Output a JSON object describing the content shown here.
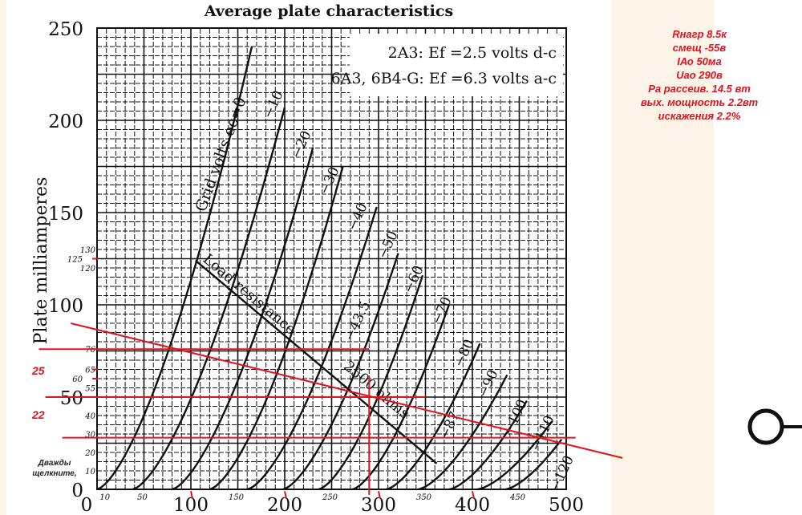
{
  "notes": [
    "Rнагр  8.5к",
    "смещ -55в",
    "IАо 50ма",
    "Uао 290в",
    "Ра рассеив. 14.5 вт",
    "вых. мощность 2.2вт",
    "искажения 2.2%"
  ],
  "left_notes": {
    "red_25": "25",
    "red_22": "22",
    "hint_line1": "Дважды",
    "hint_line2": "щелкните,"
  },
  "colors": {
    "ink": "#111111",
    "red": "#e0141e",
    "beige": "#fdf3e6"
  },
  "chart_data": {
    "type": "line",
    "title": "Average plate characteristics",
    "legend": [
      "2A3: Ef =2.5 volts d-c",
      "6A3, 6B4-G: Ef =6.3 volts a-c"
    ],
    "legend_placement": "top-right",
    "xlabel": "",
    "ylabel": "Plate milliamperes",
    "xlim": [
      0,
      500
    ],
    "ylim": [
      0,
      250
    ],
    "x_ticks": [
      "0",
      "100",
      "200",
      "300",
      "400",
      "500"
    ],
    "y_ticks": [
      "0",
      "50",
      "100",
      "150",
      "200",
      "250"
    ],
    "x_minor_labels": [
      {
        "v": 10,
        "t": "10"
      },
      {
        "v": 50,
        "t": "50"
      },
      {
        "v": 150,
        "t": "150"
      },
      {
        "v": 250,
        "t": "250"
      },
      {
        "v": 350,
        "t": "350"
      },
      {
        "v": 450,
        "t": "450"
      }
    ],
    "y_minor_labels": [
      {
        "v": 130,
        "t": "130"
      },
      {
        "v": 125,
        "t": "125"
      },
      {
        "v": 120,
        "t": "120"
      },
      {
        "v": 76,
        "t": "76"
      },
      {
        "v": 65,
        "t": "65"
      },
      {
        "v": 60,
        "t": "60"
      },
      {
        "v": 55,
        "t": "55"
      },
      {
        "v": 40,
        "t": "40"
      },
      {
        "v": 30,
        "t": "30"
      },
      {
        "v": 20,
        "t": "20"
      },
      {
        "v": 10,
        "t": "10"
      }
    ],
    "grid": true,
    "grid_curve_label_prefix": "Grid volts",
    "series": [
      {
        "name": "0",
        "label": "ec=0",
        "cutoff": 0,
        "end": [
          165,
          240
        ]
      },
      {
        "name": "-10",
        "label": "−10",
        "cutoff": 38,
        "end": [
          200,
          207
        ]
      },
      {
        "name": "-20",
        "label": "−20",
        "cutoff": 80,
        "end": [
          230,
          185
        ]
      },
      {
        "name": "-30",
        "label": "−30",
        "cutoff": 120,
        "end": [
          262,
          175
        ]
      },
      {
        "name": "-40",
        "label": "−40",
        "cutoff": 160,
        "end": [
          298,
          153
        ]
      },
      {
        "name": "-50",
        "label": "−50",
        "cutoff": 198,
        "end": [
          321,
          128
        ]
      },
      {
        "name": "-60",
        "label": "−60",
        "cutoff": 236,
        "end": [
          347,
          116
        ]
      },
      {
        "name": "-70",
        "label": "−70",
        "cutoff": 272,
        "end": [
          375,
          100
        ]
      },
      {
        "name": "-80",
        "label": "−80",
        "cutoff": 308,
        "end": [
          408,
          79
        ]
      },
      {
        "name": "-90",
        "label": "−90",
        "cutoff": 342,
        "end": [
          437,
          62
        ]
      },
      {
        "name": "-100",
        "label": "−100",
        "cutoff": 375,
        "end": [
          458,
          48
        ]
      },
      {
        "name": "-110",
        "label": "−110",
        "cutoff": 405,
        "end": [
          485,
          37
        ]
      },
      {
        "name": "-120",
        "label": "−120",
        "cutoff": 435,
        "end": [
          495,
          27
        ]
      }
    ],
    "extra_labels": [
      {
        "t": "−43.5",
        "v": 275,
        "i": 80
      },
      {
        "t": "−87",
        "v": 378,
        "i": 33
      }
    ],
    "load_line": {
      "label": "Load resistance",
      "value_label": "2500 ohms",
      "from": [
        105,
        124
      ],
      "to": [
        362,
        14
      ]
    },
    "red_lines": {
      "load_line": {
        "from": [
          -28,
          90
        ],
        "to": [
          560,
          17
        ]
      },
      "horizontal_mA": [
        {
          "i": 76,
          "v0": -62,
          "v1": 290
        },
        {
          "i": 50,
          "v0": -55,
          "v1": 350
        },
        {
          "i": 28,
          "v0": -37,
          "v1": 510
        }
      ],
      "vertical_V": [
        {
          "v": 290,
          "i0": -3,
          "i1": 61
        }
      ],
      "x_ticks": [
        100,
        200,
        300,
        400
      ],
      "y_ticks": [
        125,
        65,
        60
      ]
    }
  }
}
